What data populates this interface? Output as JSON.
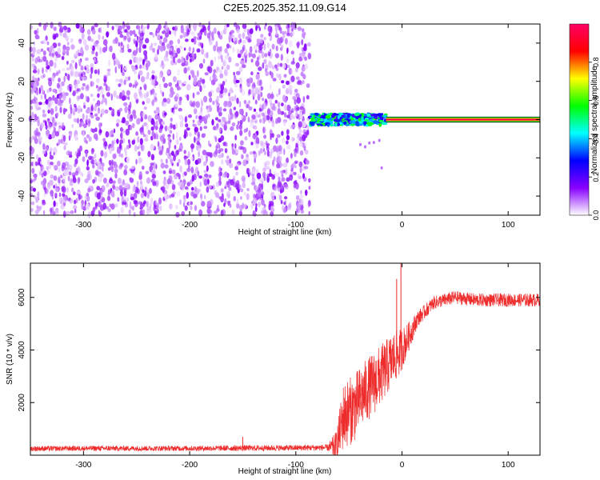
{
  "title": "C2E5.2025.352.11.09.G14",
  "colors": {
    "snr_line": "#ee2b2b",
    "background": "#ffffff",
    "axis": "#000000"
  },
  "chart_data": [
    {
      "type": "heatmap",
      "xlabel": "Height of straight line (km)",
      "ylabel": "Frequency (Hz)",
      "xlim": [
        -350,
        130
      ],
      "ylim": [
        -50,
        50
      ],
      "x_ticks": [
        -300,
        -200,
        -100,
        0,
        100
      ],
      "x_tick_labels": [
        "-300",
        "-200",
        "-100",
        "0",
        "100"
      ],
      "y_ticks": [
        -40,
        -20,
        0,
        20,
        40
      ],
      "y_tick_labels": [
        "-40",
        "-20",
        "0",
        "20",
        "40"
      ],
      "colorbar": {
        "label": "Normalized spectral amplitude",
        "range": [
          0,
          1
        ],
        "ticks": [
          0.0,
          0.2,
          0.4,
          0.6,
          0.8
        ],
        "tick_labels": [
          "0.0",
          "0.2",
          "0.4",
          "0.6",
          "0.8"
        ],
        "colormap": [
          "#ffffff",
          "#8800ff",
          "#0000ff",
          "#00ffff",
          "#00ff00",
          "#ffff00",
          "#ff0000",
          "#ff0066"
        ]
      },
      "regions": [
        {
          "kind": "noise",
          "x_range": [
            -350,
            -87
          ],
          "freq_range": [
            -50,
            50
          ],
          "amplitude_range": [
            0.02,
            0.15
          ]
        },
        {
          "kind": "noisy_signal",
          "x_range": [
            -87,
            -15
          ],
          "freq_center": 0,
          "freq_halfwidth": 3,
          "amplitude_range": [
            0.2,
            0.6
          ]
        },
        {
          "kind": "stable_signal",
          "x_range": [
            -15,
            130
          ],
          "freq_center": 0,
          "freq_halfwidth": 1.5,
          "amplitude_peak": 0.95
        }
      ]
    },
    {
      "type": "line",
      "xlabel": "Height of straight line (km)",
      "ylabel": "SNR (10 * v/v)",
      "xlim": [
        -350,
        130
      ],
      "ylim": [
        0,
        7300
      ],
      "x_ticks": [
        -300,
        -200,
        -100,
        0,
        100
      ],
      "x_tick_labels": [
        "-300",
        "-200",
        "-100",
        "0",
        "100"
      ],
      "y_ticks": [
        2000,
        4000,
        6000
      ],
      "y_tick_labels": [
        "2000",
        "4000",
        "6000"
      ],
      "series": [
        {
          "x": [
            -350,
            -300,
            -250,
            -200,
            -150,
            -100,
            -70,
            -62,
            -55,
            -45,
            -35,
            -25,
            -15,
            -8,
            -2,
            5,
            15,
            30,
            50,
            70,
            90,
            110,
            130
          ],
          "y": [
            250,
            260,
            260,
            260,
            270,
            280,
            290,
            320,
            1500,
            1800,
            2400,
            2800,
            3300,
            3700,
            3900,
            4400,
            5200,
            5800,
            6000,
            5900,
            5900,
            5900,
            5900
          ],
          "spread": [
            100,
            100,
            100,
            100,
            110,
            110,
            120,
            600,
            1300,
            1300,
            1200,
            1200,
            1100,
            1000,
            900,
            600,
            300,
            250,
            250,
            250,
            250,
            250,
            250
          ]
        }
      ],
      "spikes": [
        {
          "x": -150,
          "y": 700
        },
        {
          "x": -1,
          "y": 7300
        },
        {
          "x": -5,
          "y": 6700
        }
      ]
    }
  ]
}
